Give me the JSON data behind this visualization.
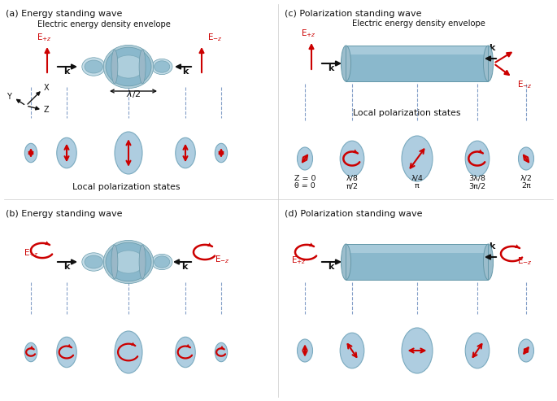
{
  "bg_color": "#ffffff",
  "panel_labels": [
    "(a) Energy standing wave",
    "(b) Energy standing wave",
    "(c) Polarization standing wave",
    "(d) Polarization standing wave"
  ],
  "ellipse_color": "#aecde0",
  "ellipse_edge": "#7aaabf",
  "arrow_color": "#cc0000",
  "dashed_color": "#6688bb",
  "shape_color": "#8ab8cc",
  "shape_dark": "#6699aa",
  "shape_light": "#c5dde8",
  "black": "#111111",
  "z_labels_c": [
    "Z = 0",
    "λ/8",
    "λ/4",
    "3λ/8",
    "λ/2"
  ],
  "theta_labels_c": [
    "θ = 0",
    "π/2",
    "π",
    "3π/2",
    "2π"
  ]
}
